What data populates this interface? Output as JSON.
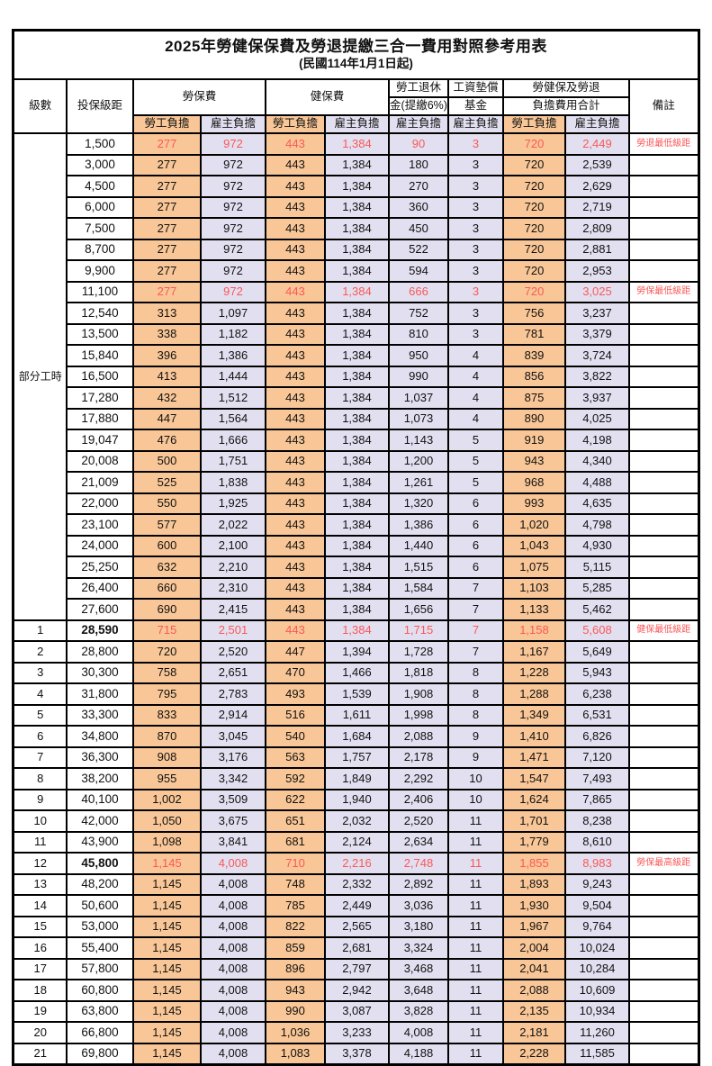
{
  "title": "2025年勞健保保費及勞退提繳三合一費用對照參考用表",
  "subtitle": "(民國114年1月1日起)",
  "colors": {
    "employee_fill": "#F9C797",
    "employer_fill": "#E2E0F0",
    "highlight_red": "#FB5757",
    "border": "#000000"
  },
  "header": {
    "level": "級數",
    "bracket": "投保級距",
    "labor_insurance": "勞保費",
    "health_insurance": "健保費",
    "pension_line1": "勞工退休",
    "pension_line2": "金(提繳6%)",
    "wage_fund_line1": "工資墊償",
    "wage_fund_line2": "基金",
    "total_line1": "勞健保及勞退",
    "total_line2": "負擔費用合計",
    "remark": "備註",
    "employee": "勞工負擔",
    "employer": "雇主負擔"
  },
  "table": {
    "part_time_label": "部分工時",
    "part_time_rowspan": 23,
    "column_keys": [
      "labor_employee",
      "labor_employer",
      "health_employee",
      "health_employer",
      "pension_employer",
      "wage_fund_employer",
      "total_employee",
      "total_employer"
    ],
    "rows": [
      {
        "lv": "",
        "br": "1,500",
        "v": [
          "277",
          "972",
          "443",
          "1,384",
          "90",
          "3",
          "720",
          "2,449"
        ],
        "rm": "勞退最低級距",
        "hl": true,
        "bb": false
      },
      {
        "lv": "",
        "br": "3,000",
        "v": [
          "277",
          "972",
          "443",
          "1,384",
          "180",
          "3",
          "720",
          "2,539"
        ],
        "rm": "",
        "hl": false,
        "bb": false
      },
      {
        "lv": "",
        "br": "4,500",
        "v": [
          "277",
          "972",
          "443",
          "1,384",
          "270",
          "3",
          "720",
          "2,629"
        ],
        "rm": "",
        "hl": false,
        "bb": false
      },
      {
        "lv": "",
        "br": "6,000",
        "v": [
          "277",
          "972",
          "443",
          "1,384",
          "360",
          "3",
          "720",
          "2,719"
        ],
        "rm": "",
        "hl": false,
        "bb": false
      },
      {
        "lv": "",
        "br": "7,500",
        "v": [
          "277",
          "972",
          "443",
          "1,384",
          "450",
          "3",
          "720",
          "2,809"
        ],
        "rm": "",
        "hl": false,
        "bb": false
      },
      {
        "lv": "",
        "br": "8,700",
        "v": [
          "277",
          "972",
          "443",
          "1,384",
          "522",
          "3",
          "720",
          "2,881"
        ],
        "rm": "",
        "hl": false,
        "bb": false
      },
      {
        "lv": "",
        "br": "9,900",
        "v": [
          "277",
          "972",
          "443",
          "1,384",
          "594",
          "3",
          "720",
          "2,953"
        ],
        "rm": "",
        "hl": false,
        "bb": false
      },
      {
        "lv": "",
        "br": "11,100",
        "v": [
          "277",
          "972",
          "443",
          "1,384",
          "666",
          "3",
          "720",
          "3,025"
        ],
        "rm": "勞保最低級距",
        "hl": true,
        "bb": false
      },
      {
        "lv": "",
        "br": "12,540",
        "v": [
          "313",
          "1,097",
          "443",
          "1,384",
          "752",
          "3",
          "756",
          "3,237"
        ],
        "rm": "",
        "hl": false,
        "bb": false
      },
      {
        "lv": "",
        "br": "13,500",
        "v": [
          "338",
          "1,182",
          "443",
          "1,384",
          "810",
          "3",
          "781",
          "3,379"
        ],
        "rm": "",
        "hl": false,
        "bb": false
      },
      {
        "lv": "",
        "br": "15,840",
        "v": [
          "396",
          "1,386",
          "443",
          "1,384",
          "950",
          "4",
          "839",
          "3,724"
        ],
        "rm": "",
        "hl": false,
        "bb": false
      },
      {
        "lv": "",
        "br": "16,500",
        "v": [
          "413",
          "1,444",
          "443",
          "1,384",
          "990",
          "4",
          "856",
          "3,822"
        ],
        "rm": "",
        "hl": false,
        "bb": false
      },
      {
        "lv": "",
        "br": "17,280",
        "v": [
          "432",
          "1,512",
          "443",
          "1,384",
          "1,037",
          "4",
          "875",
          "3,937"
        ],
        "rm": "",
        "hl": false,
        "bb": false
      },
      {
        "lv": "",
        "br": "17,880",
        "v": [
          "447",
          "1,564",
          "443",
          "1,384",
          "1,073",
          "4",
          "890",
          "4,025"
        ],
        "rm": "",
        "hl": false,
        "bb": false
      },
      {
        "lv": "",
        "br": "19,047",
        "v": [
          "476",
          "1,666",
          "443",
          "1,384",
          "1,143",
          "5",
          "919",
          "4,198"
        ],
        "rm": "",
        "hl": false,
        "bb": false
      },
      {
        "lv": "",
        "br": "20,008",
        "v": [
          "500",
          "1,751",
          "443",
          "1,384",
          "1,200",
          "5",
          "943",
          "4,340"
        ],
        "rm": "",
        "hl": false,
        "bb": false
      },
      {
        "lv": "",
        "br": "21,009",
        "v": [
          "525",
          "1,838",
          "443",
          "1,384",
          "1,261",
          "5",
          "968",
          "4,488"
        ],
        "rm": "",
        "hl": false,
        "bb": false
      },
      {
        "lv": "",
        "br": "22,000",
        "v": [
          "550",
          "1,925",
          "443",
          "1,384",
          "1,320",
          "6",
          "993",
          "4,635"
        ],
        "rm": "",
        "hl": false,
        "bb": false
      },
      {
        "lv": "",
        "br": "23,100",
        "v": [
          "577",
          "2,022",
          "443",
          "1,384",
          "1,386",
          "6",
          "1,020",
          "4,798"
        ],
        "rm": "",
        "hl": false,
        "bb": false
      },
      {
        "lv": "",
        "br": "24,000",
        "v": [
          "600",
          "2,100",
          "443",
          "1,384",
          "1,440",
          "6",
          "1,043",
          "4,930"
        ],
        "rm": "",
        "hl": false,
        "bb": false
      },
      {
        "lv": "",
        "br": "25,250",
        "v": [
          "632",
          "2,210",
          "443",
          "1,384",
          "1,515",
          "6",
          "1,075",
          "5,115"
        ],
        "rm": "",
        "hl": false,
        "bb": false
      },
      {
        "lv": "",
        "br": "26,400",
        "v": [
          "660",
          "2,310",
          "443",
          "1,384",
          "1,584",
          "7",
          "1,103",
          "5,285"
        ],
        "rm": "",
        "hl": false,
        "bb": false
      },
      {
        "lv": "",
        "br": "27,600",
        "v": [
          "690",
          "2,415",
          "443",
          "1,384",
          "1,656",
          "7",
          "1,133",
          "5,462"
        ],
        "rm": "",
        "hl": false,
        "bb": false
      },
      {
        "lv": "1",
        "br": "28,590",
        "v": [
          "715",
          "2,501",
          "443",
          "1,384",
          "1,715",
          "7",
          "1,158",
          "5,608"
        ],
        "rm": "健保最低級距",
        "hl": true,
        "bb": true
      },
      {
        "lv": "2",
        "br": "28,800",
        "v": [
          "720",
          "2,520",
          "447",
          "1,394",
          "1,728",
          "7",
          "1,167",
          "5,649"
        ],
        "rm": "",
        "hl": false,
        "bb": false
      },
      {
        "lv": "3",
        "br": "30,300",
        "v": [
          "758",
          "2,651",
          "470",
          "1,466",
          "1,818",
          "8",
          "1,228",
          "5,943"
        ],
        "rm": "",
        "hl": false,
        "bb": false
      },
      {
        "lv": "4",
        "br": "31,800",
        "v": [
          "795",
          "2,783",
          "493",
          "1,539",
          "1,908",
          "8",
          "1,288",
          "6,238"
        ],
        "rm": "",
        "hl": false,
        "bb": false
      },
      {
        "lv": "5",
        "br": "33,300",
        "v": [
          "833",
          "2,914",
          "516",
          "1,611",
          "1,998",
          "8",
          "1,349",
          "6,531"
        ],
        "rm": "",
        "hl": false,
        "bb": false
      },
      {
        "lv": "6",
        "br": "34,800",
        "v": [
          "870",
          "3,045",
          "540",
          "1,684",
          "2,088",
          "9",
          "1,410",
          "6,826"
        ],
        "rm": "",
        "hl": false,
        "bb": false
      },
      {
        "lv": "7",
        "br": "36,300",
        "v": [
          "908",
          "3,176",
          "563",
          "1,757",
          "2,178",
          "9",
          "1,471",
          "7,120"
        ],
        "rm": "",
        "hl": false,
        "bb": false
      },
      {
        "lv": "8",
        "br": "38,200",
        "v": [
          "955",
          "3,342",
          "592",
          "1,849",
          "2,292",
          "10",
          "1,547",
          "7,493"
        ],
        "rm": "",
        "hl": false,
        "bb": false
      },
      {
        "lv": "9",
        "br": "40,100",
        "v": [
          "1,002",
          "3,509",
          "622",
          "1,940",
          "2,406",
          "10",
          "1,624",
          "7,865"
        ],
        "rm": "",
        "hl": false,
        "bb": false
      },
      {
        "lv": "10",
        "br": "42,000",
        "v": [
          "1,050",
          "3,675",
          "651",
          "2,032",
          "2,520",
          "11",
          "1,701",
          "8,238"
        ],
        "rm": "",
        "hl": false,
        "bb": false
      },
      {
        "lv": "11",
        "br": "43,900",
        "v": [
          "1,098",
          "3,841",
          "681",
          "2,124",
          "2,634",
          "11",
          "1,779",
          "8,610"
        ],
        "rm": "",
        "hl": false,
        "bb": false
      },
      {
        "lv": "12",
        "br": "45,800",
        "v": [
          "1,145",
          "4,008",
          "710",
          "2,216",
          "2,748",
          "11",
          "1,855",
          "8,983"
        ],
        "rm": "勞保最高級距",
        "hl": true,
        "bb": true
      },
      {
        "lv": "13",
        "br": "48,200",
        "v": [
          "1,145",
          "4,008",
          "748",
          "2,332",
          "2,892",
          "11",
          "1,893",
          "9,243"
        ],
        "rm": "",
        "hl": false,
        "bb": false
      },
      {
        "lv": "14",
        "br": "50,600",
        "v": [
          "1,145",
          "4,008",
          "785",
          "2,449",
          "3,036",
          "11",
          "1,930",
          "9,504"
        ],
        "rm": "",
        "hl": false,
        "bb": false
      },
      {
        "lv": "15",
        "br": "53,000",
        "v": [
          "1,145",
          "4,008",
          "822",
          "2,565",
          "3,180",
          "11",
          "1,967",
          "9,764"
        ],
        "rm": "",
        "hl": false,
        "bb": false
      },
      {
        "lv": "16",
        "br": "55,400",
        "v": [
          "1,145",
          "4,008",
          "859",
          "2,681",
          "3,324",
          "11",
          "2,004",
          "10,024"
        ],
        "rm": "",
        "hl": false,
        "bb": false
      },
      {
        "lv": "17",
        "br": "57,800",
        "v": [
          "1,145",
          "4,008",
          "896",
          "2,797",
          "3,468",
          "11",
          "2,041",
          "10,284"
        ],
        "rm": "",
        "hl": false,
        "bb": false
      },
      {
        "lv": "18",
        "br": "60,800",
        "v": [
          "1,145",
          "4,008",
          "943",
          "2,942",
          "3,648",
          "11",
          "2,088",
          "10,609"
        ],
        "rm": "",
        "hl": false,
        "bb": false
      },
      {
        "lv": "19",
        "br": "63,800",
        "v": [
          "1,145",
          "4,008",
          "990",
          "3,087",
          "3,828",
          "11",
          "2,135",
          "10,934"
        ],
        "rm": "",
        "hl": false,
        "bb": false
      },
      {
        "lv": "20",
        "br": "66,800",
        "v": [
          "1,145",
          "4,008",
          "1,036",
          "3,233",
          "4,008",
          "11",
          "2,181",
          "11,260"
        ],
        "rm": "",
        "hl": false,
        "bb": false
      },
      {
        "lv": "21",
        "br": "69,800",
        "v": [
          "1,145",
          "4,008",
          "1,083",
          "3,378",
          "4,188",
          "11",
          "2,228",
          "11,585"
        ],
        "rm": "",
        "hl": false,
        "bb": false
      }
    ]
  }
}
